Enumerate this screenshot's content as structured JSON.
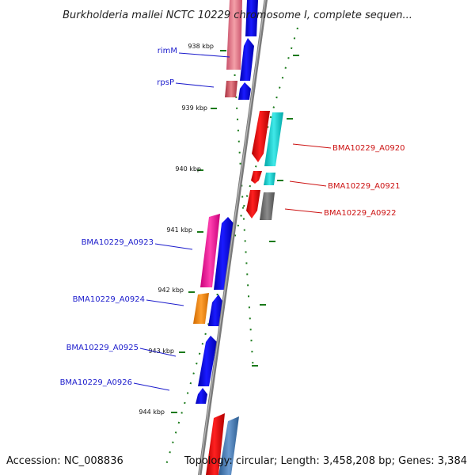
{
  "map": {
    "title": "Burkholderia mallei NCTC 10229 chromosome I, complete sequen...",
    "accession": "Accession: NC_008836",
    "summary": "Topology: circular; Length: 3,458,208 bp; Genes: 3,384",
    "colors": {
      "backbone": "#808080",
      "tick": "#1a7a1a",
      "forward_label": "#1c1ccc",
      "reverse_label": "#cc1111"
    },
    "ticks": [
      "938 kbp",
      "939 kbp",
      "940 kbp",
      "941 kbp",
      "942 kbp",
      "943 kbp",
      "944 kbp"
    ],
    "forward_genes": [
      {
        "label": "rimM",
        "color": "#1c1ccc"
      },
      {
        "label": "rpsP",
        "color": "#1c1ccc"
      },
      {
        "label": "BMA10229_A0923",
        "color": "#1c1ccc"
      },
      {
        "label": "BMA10229_A0924",
        "color": "#1c1ccc"
      },
      {
        "label": "BMA10229_A0925",
        "color": "#1c1ccc"
      },
      {
        "label": "BMA10229_A0926",
        "color": "#1c1ccc"
      }
    ],
    "reverse_genes": [
      {
        "label": "BMA10229_A0920",
        "color": "#cc1111"
      },
      {
        "label": "BMA10229_A0921",
        "color": "#cc1111"
      },
      {
        "label": "BMA10229_A0922",
        "color": "#cc1111"
      }
    ]
  }
}
